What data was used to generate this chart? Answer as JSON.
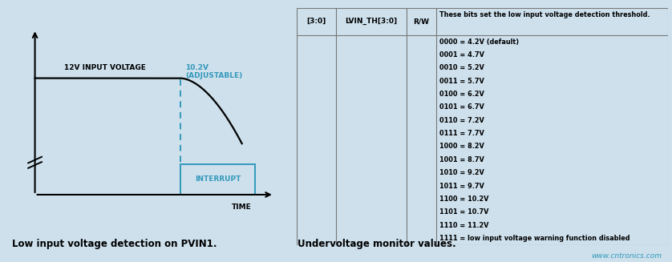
{
  "bg_color": "#cde0ec",
  "fig_width": 8.38,
  "fig_height": 3.27,
  "left_panel_title": "Low input voltage detection on PVIN1.",
  "right_panel_title": "Undervoltage monitor values.",
  "watermark": "www.cntronics.com",
  "signal_label": "12V INPUT VOLTAGE",
  "threshold_label": "10.2V\n(ADJUSTABLE)",
  "interrupt_label": "INTERRUPT",
  "time_label": "TIME",
  "signal_color": "#000000",
  "threshold_color": "#3399bb",
  "interrupt_box_color": "#3399bb",
  "table_col0": "[3:0]",
  "table_col1": "LVIN_TH[3:0]",
  "table_col2": "R/W",
  "table_header": "These bits set the low input voltage detection threshold.",
  "table_rows": [
    "0000 = 4.2V (default)",
    "0001 = 4.7V",
    "0010 = 5.2V",
    "0011 = 5.7V",
    "0100 = 6.2V",
    "0101 = 6.7V",
    "0110 = 7.2V",
    "0111 = 7.7V",
    "1000 = 8.2V",
    "1001 = 8.7V",
    "1010 = 9.2V",
    "1011 = 9.7V",
    "1100 = 10.2V",
    "1101 = 10.7V",
    "1110 = 11.2V",
    "1111 = low input voltage warning function disabled"
  ]
}
